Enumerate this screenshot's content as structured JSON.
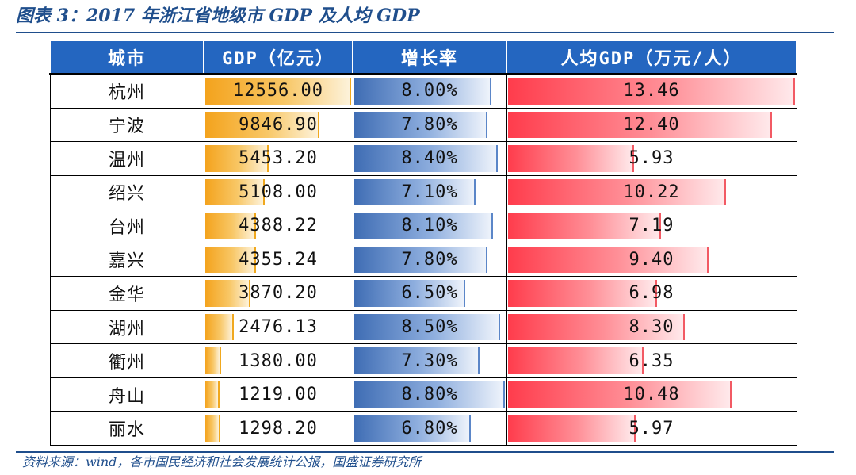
{
  "title": "图表 3：2017 年浙江省地级市 GDP 及人均 GDP",
  "source": "资料来源：wind，各市国民经济和社会发展统计公报，国盛证券研究所",
  "colors": {
    "title_blue": "#1f4e8c",
    "header_blue": "#2466c0",
    "gdp_bar": "#f4a31d",
    "growth_bar": "#3f6db4",
    "per_capita_bar": "#ff3c4c"
  },
  "chart_data": {
    "type": "table",
    "title": "图表 3：2017 年浙江省地级市 GDP 及人均 GDP",
    "columns": [
      "城市",
      "GDP（亿元）",
      "增长率",
      "人均GDP（万元/人）"
    ],
    "rows": [
      {
        "city": "杭州",
        "gdp": "12556.00",
        "growth": "8.00%",
        "per_capita": "13.46"
      },
      {
        "city": "宁波",
        "gdp": "9846.90",
        "growth": "7.80%",
        "per_capita": "12.40"
      },
      {
        "city": "温州",
        "gdp": "5453.20",
        "growth": "8.40%",
        "per_capita": "5.93"
      },
      {
        "city": "绍兴",
        "gdp": "5108.00",
        "growth": "7.10%",
        "per_capita": "10.22"
      },
      {
        "city": "台州",
        "gdp": "4388.22",
        "growth": "8.10%",
        "per_capita": "7.19"
      },
      {
        "city": "嘉兴",
        "gdp": "4355.24",
        "growth": "7.80%",
        "per_capita": "9.40"
      },
      {
        "city": "金华",
        "gdp": "3870.20",
        "growth": "6.50%",
        "per_capita": "6.98"
      },
      {
        "city": "湖州",
        "gdp": "2476.13",
        "growth": "8.50%",
        "per_capita": "8.30"
      },
      {
        "city": "衢州",
        "gdp": "1380.00",
        "growth": "7.30%",
        "per_capita": "6.35"
      },
      {
        "city": "舟山",
        "gdp": "1219.00",
        "growth": "8.80%",
        "per_capita": "10.48"
      },
      {
        "city": "丽水",
        "gdp": "1298.20",
        "growth": "6.80%",
        "per_capita": "5.97"
      }
    ]
  }
}
